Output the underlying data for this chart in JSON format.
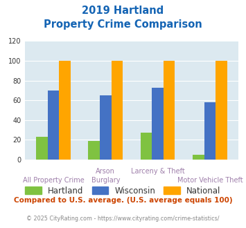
{
  "title_line1": "2019 Hartland",
  "title_line2": "Property Crime Comparison",
  "groups": {
    "Hartland": [
      23,
      19,
      27,
      5
    ],
    "Wisconsin": [
      70,
      65,
      73,
      58
    ],
    "National": [
      100,
      100,
      100,
      100
    ]
  },
  "colors": {
    "Hartland": "#7fc241",
    "Wisconsin": "#4472c4",
    "National": "#ffa500"
  },
  "top_labels": {
    "1": "Arson",
    "2": "Larceny & Theft"
  },
  "bottom_labels": {
    "0": "All Property Crime",
    "1": "Burglary",
    "3": "Motor Vehicle Theft"
  },
  "ylim": [
    0,
    120
  ],
  "yticks": [
    0,
    20,
    40,
    60,
    80,
    100,
    120
  ],
  "background_color": "#dce9f0",
  "title_color": "#1464b4",
  "axis_label_color": "#9e7eaa",
  "legend_label_color": "#333333",
  "footnote_color": "#cc4400",
  "copyright_color": "#888888",
  "footnote": "Compared to U.S. average. (U.S. average equals 100)",
  "copyright": "© 2025 CityRating.com - https://www.cityrating.com/crime-statistics/",
  "bar_width": 0.22
}
